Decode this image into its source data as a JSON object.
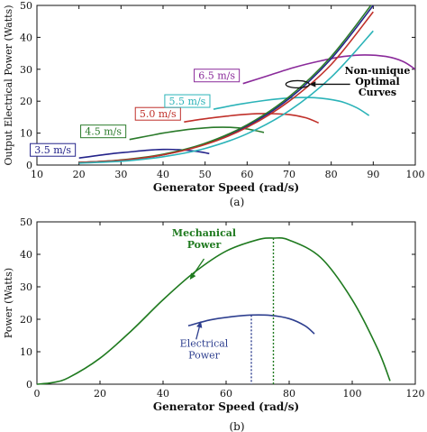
{
  "chart_data": [
    {
      "type": "line",
      "caption": "(a)",
      "xlabel": "Generator Speed (rad/s)",
      "ylabel": "Output Electrical Power (Watts)",
      "xlim": [
        10,
        100
      ],
      "ylim": [
        0,
        50
      ],
      "xticks": [
        "10",
        "20",
        "30",
        "40",
        "50",
        "60",
        "70",
        "80",
        "90",
        "100"
      ],
      "yticks": [
        "0",
        "10",
        "20",
        "30",
        "40",
        "50"
      ],
      "grid": false,
      "series": [
        {
          "name": "3.5 m/s",
          "color": "#23238a",
          "x": [
            20,
            24,
            28,
            32,
            36,
            40,
            44,
            48,
            51
          ],
          "y": [
            2.2,
            2.9,
            3.6,
            4.1,
            4.6,
            4.9,
            4.8,
            4.3,
            3.6
          ]
        },
        {
          "name": "4.5 m/s",
          "color": "#2a7a2a",
          "x": [
            32,
            36,
            40,
            44,
            48,
            52,
            56,
            60,
            64
          ],
          "y": [
            8.0,
            9.0,
            10.0,
            10.8,
            11.4,
            11.8,
            11.8,
            11.3,
            10.2
          ]
        },
        {
          "name": "5.0 m/s",
          "color": "#c0302a",
          "x": [
            45,
            50,
            55,
            60,
            65,
            70,
            74,
            77
          ],
          "y": [
            13.5,
            14.5,
            15.3,
            15.9,
            16.1,
            15.8,
            14.8,
            13.2
          ]
        },
        {
          "name": "5.5 m/s",
          "color": "#2bb3b8",
          "x": [
            52,
            58,
            64,
            70,
            76,
            82,
            86,
            89
          ],
          "y": [
            17.5,
            19.0,
            20.2,
            21.0,
            21.1,
            20.0,
            18.0,
            15.5
          ]
        },
        {
          "name": "6.5 m/s",
          "color": "#8a2a9a",
          "x": [
            59,
            65,
            71,
            77,
            83,
            88,
            93,
            97,
            100
          ],
          "y": [
            25.5,
            28.0,
            30.5,
            32.5,
            34.0,
            34.5,
            34.0,
            32.5,
            30.0
          ]
        },
        {
          "name": "",
          "color": "#23238a",
          "x": [
            20,
            30,
            40,
            50,
            60,
            70,
            80,
            90
          ],
          "y": [
            0.8,
            1.5,
            3.2,
            6.6,
            12.2,
            20.8,
            33.3,
            50.0
          ]
        },
        {
          "name": "",
          "color": "#2a7a2a",
          "x": [
            20,
            30,
            40,
            50,
            60,
            70,
            80,
            90
          ],
          "y": [
            0.8,
            1.6,
            3.4,
            6.8,
            12.6,
            21.4,
            34.0,
            51.0
          ]
        },
        {
          "name": "",
          "color": "#c0302a",
          "x": [
            20,
            30,
            40,
            50,
            60,
            70,
            80,
            90
          ],
          "y": [
            0.8,
            1.5,
            3.2,
            6.4,
            11.8,
            20.0,
            31.5,
            48.0
          ]
        },
        {
          "name": "",
          "color": "#2bb3b8",
          "x": [
            20,
            30,
            40,
            50,
            60,
            70,
            80,
            90
          ],
          "y": [
            0.6,
            1.2,
            2.6,
            5.2,
            9.8,
            17.0,
            27.5,
            42.0
          ]
        }
      ],
      "annotations": [
        {
          "text_lines": [
            "Non-unique",
            "Optimal",
            "Curves"
          ],
          "color": "#111111"
        }
      ]
    },
    {
      "type": "line",
      "caption": "(b)",
      "xlabel": "Generator Speed (rad/s)",
      "ylabel": "Power (Watts)",
      "xlim": [
        0,
        120
      ],
      "ylim": [
        0,
        50
      ],
      "xticks": [
        "0",
        "20",
        "40",
        "60",
        "80",
        "100",
        "120"
      ],
      "yticks": [
        "0",
        "10",
        "20",
        "30",
        "40",
        "50"
      ],
      "grid": false,
      "series": [
        {
          "name": "Mechanical Power",
          "color": "#1f7a1f",
          "x": [
            0,
            5,
            10,
            20,
            30,
            40,
            50,
            60,
            70,
            75,
            80,
            90,
            100,
            108,
            112
          ],
          "y": [
            0,
            0.5,
            2.0,
            8.0,
            16.5,
            26.0,
            34.5,
            41.0,
            44.5,
            45.0,
            44.4,
            39.0,
            26.0,
            11.0,
            1.0
          ]
        },
        {
          "name": "Electrical Power",
          "color": "#2e3f8f",
          "x": [
            48,
            55,
            62,
            68,
            74,
            80,
            85,
            88
          ],
          "y": [
            18.0,
            19.8,
            20.8,
            21.3,
            21.2,
            20.2,
            18.0,
            15.5
          ]
        }
      ],
      "markers": [
        {
          "x": 75,
          "y": 45.0,
          "color": "#1f7a1f",
          "style": "dotted"
        },
        {
          "x": 68,
          "y": 21.3,
          "color": "#2e3f8f",
          "style": "dotted"
        }
      ],
      "annotations": [
        {
          "text_lines": [
            "Mechanical",
            "Power"
          ],
          "color": "#1f7a1f"
        },
        {
          "text_lines": [
            "Electrical",
            "Power"
          ],
          "color": "#2e3f8f"
        }
      ]
    }
  ]
}
